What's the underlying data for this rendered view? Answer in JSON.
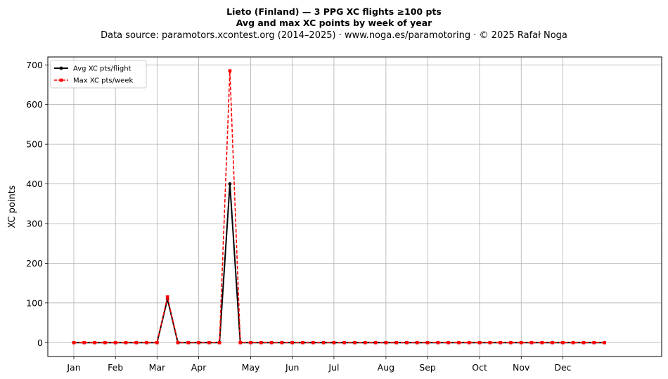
{
  "header": {
    "title_line1": "Lieto (Finland)  —  3 PPG XC flights ≥100 pts",
    "title_line2": "Avg and max XC points by week of year",
    "subtitle": "Data source: paramotors.xcontest.org (2014–2025)  ·  www.noga.es/paramotoring  ·  © 2025 Rafał Noga"
  },
  "chart_data": {
    "type": "line",
    "ylabel": "XC points",
    "xlabel": "",
    "x_unit": "week of year",
    "xlim": [
      -1.5,
      57.5
    ],
    "ylim": [
      -35,
      720
    ],
    "yticks": [
      0,
      100,
      200,
      300,
      400,
      500,
      600,
      700
    ],
    "x_month_ticks": [
      {
        "label": "Jan",
        "week": 1
      },
      {
        "label": "Feb",
        "week": 5
      },
      {
        "label": "Mar",
        "week": 9
      },
      {
        "label": "Apr",
        "week": 13
      },
      {
        "label": "May",
        "week": 18
      },
      {
        "label": "Jun",
        "week": 22
      },
      {
        "label": "Jul",
        "week": 26
      },
      {
        "label": "Aug",
        "week": 31
      },
      {
        "label": "Sep",
        "week": 35
      },
      {
        "label": "Oct",
        "week": 40
      },
      {
        "label": "Nov",
        "week": 44
      },
      {
        "label": "Dec",
        "week": 48
      }
    ],
    "x": [
      1,
      2,
      3,
      4,
      5,
      6,
      7,
      8,
      9,
      10,
      11,
      12,
      13,
      14,
      15,
      16,
      17,
      18,
      19,
      20,
      21,
      22,
      23,
      24,
      25,
      26,
      27,
      28,
      29,
      30,
      31,
      32,
      33,
      34,
      35,
      36,
      37,
      38,
      39,
      40,
      41,
      42,
      43,
      44,
      45,
      46,
      47,
      48,
      49,
      50,
      51,
      52
    ],
    "series": [
      {
        "name": "Avg XC pts/flight",
        "color": "#000000",
        "style": "solid",
        "marker": "circle",
        "values": [
          0,
          0,
          0,
          0,
          0,
          0,
          0,
          0,
          0,
          110,
          0,
          0,
          0,
          0,
          0,
          400,
          0,
          0,
          0,
          0,
          0,
          0,
          0,
          0,
          0,
          0,
          0,
          0,
          0,
          0,
          0,
          0,
          0,
          0,
          0,
          0,
          0,
          0,
          0,
          0,
          0,
          0,
          0,
          0,
          0,
          0,
          0,
          0,
          0,
          0,
          0,
          0
        ]
      },
      {
        "name": "Max XC pts/week",
        "color": "#ff0000",
        "style": "dashed",
        "marker": "square",
        "values": [
          0,
          0,
          0,
          0,
          0,
          0,
          0,
          0,
          0,
          115,
          0,
          0,
          0,
          0,
          0,
          685,
          0,
          0,
          0,
          0,
          0,
          0,
          0,
          0,
          0,
          0,
          0,
          0,
          0,
          0,
          0,
          0,
          0,
          0,
          0,
          0,
          0,
          0,
          0,
          0,
          0,
          0,
          0,
          0,
          0,
          0,
          0,
          0,
          0,
          0,
          0,
          0
        ]
      }
    ],
    "grid": true,
    "legend_position": "top-left"
  }
}
